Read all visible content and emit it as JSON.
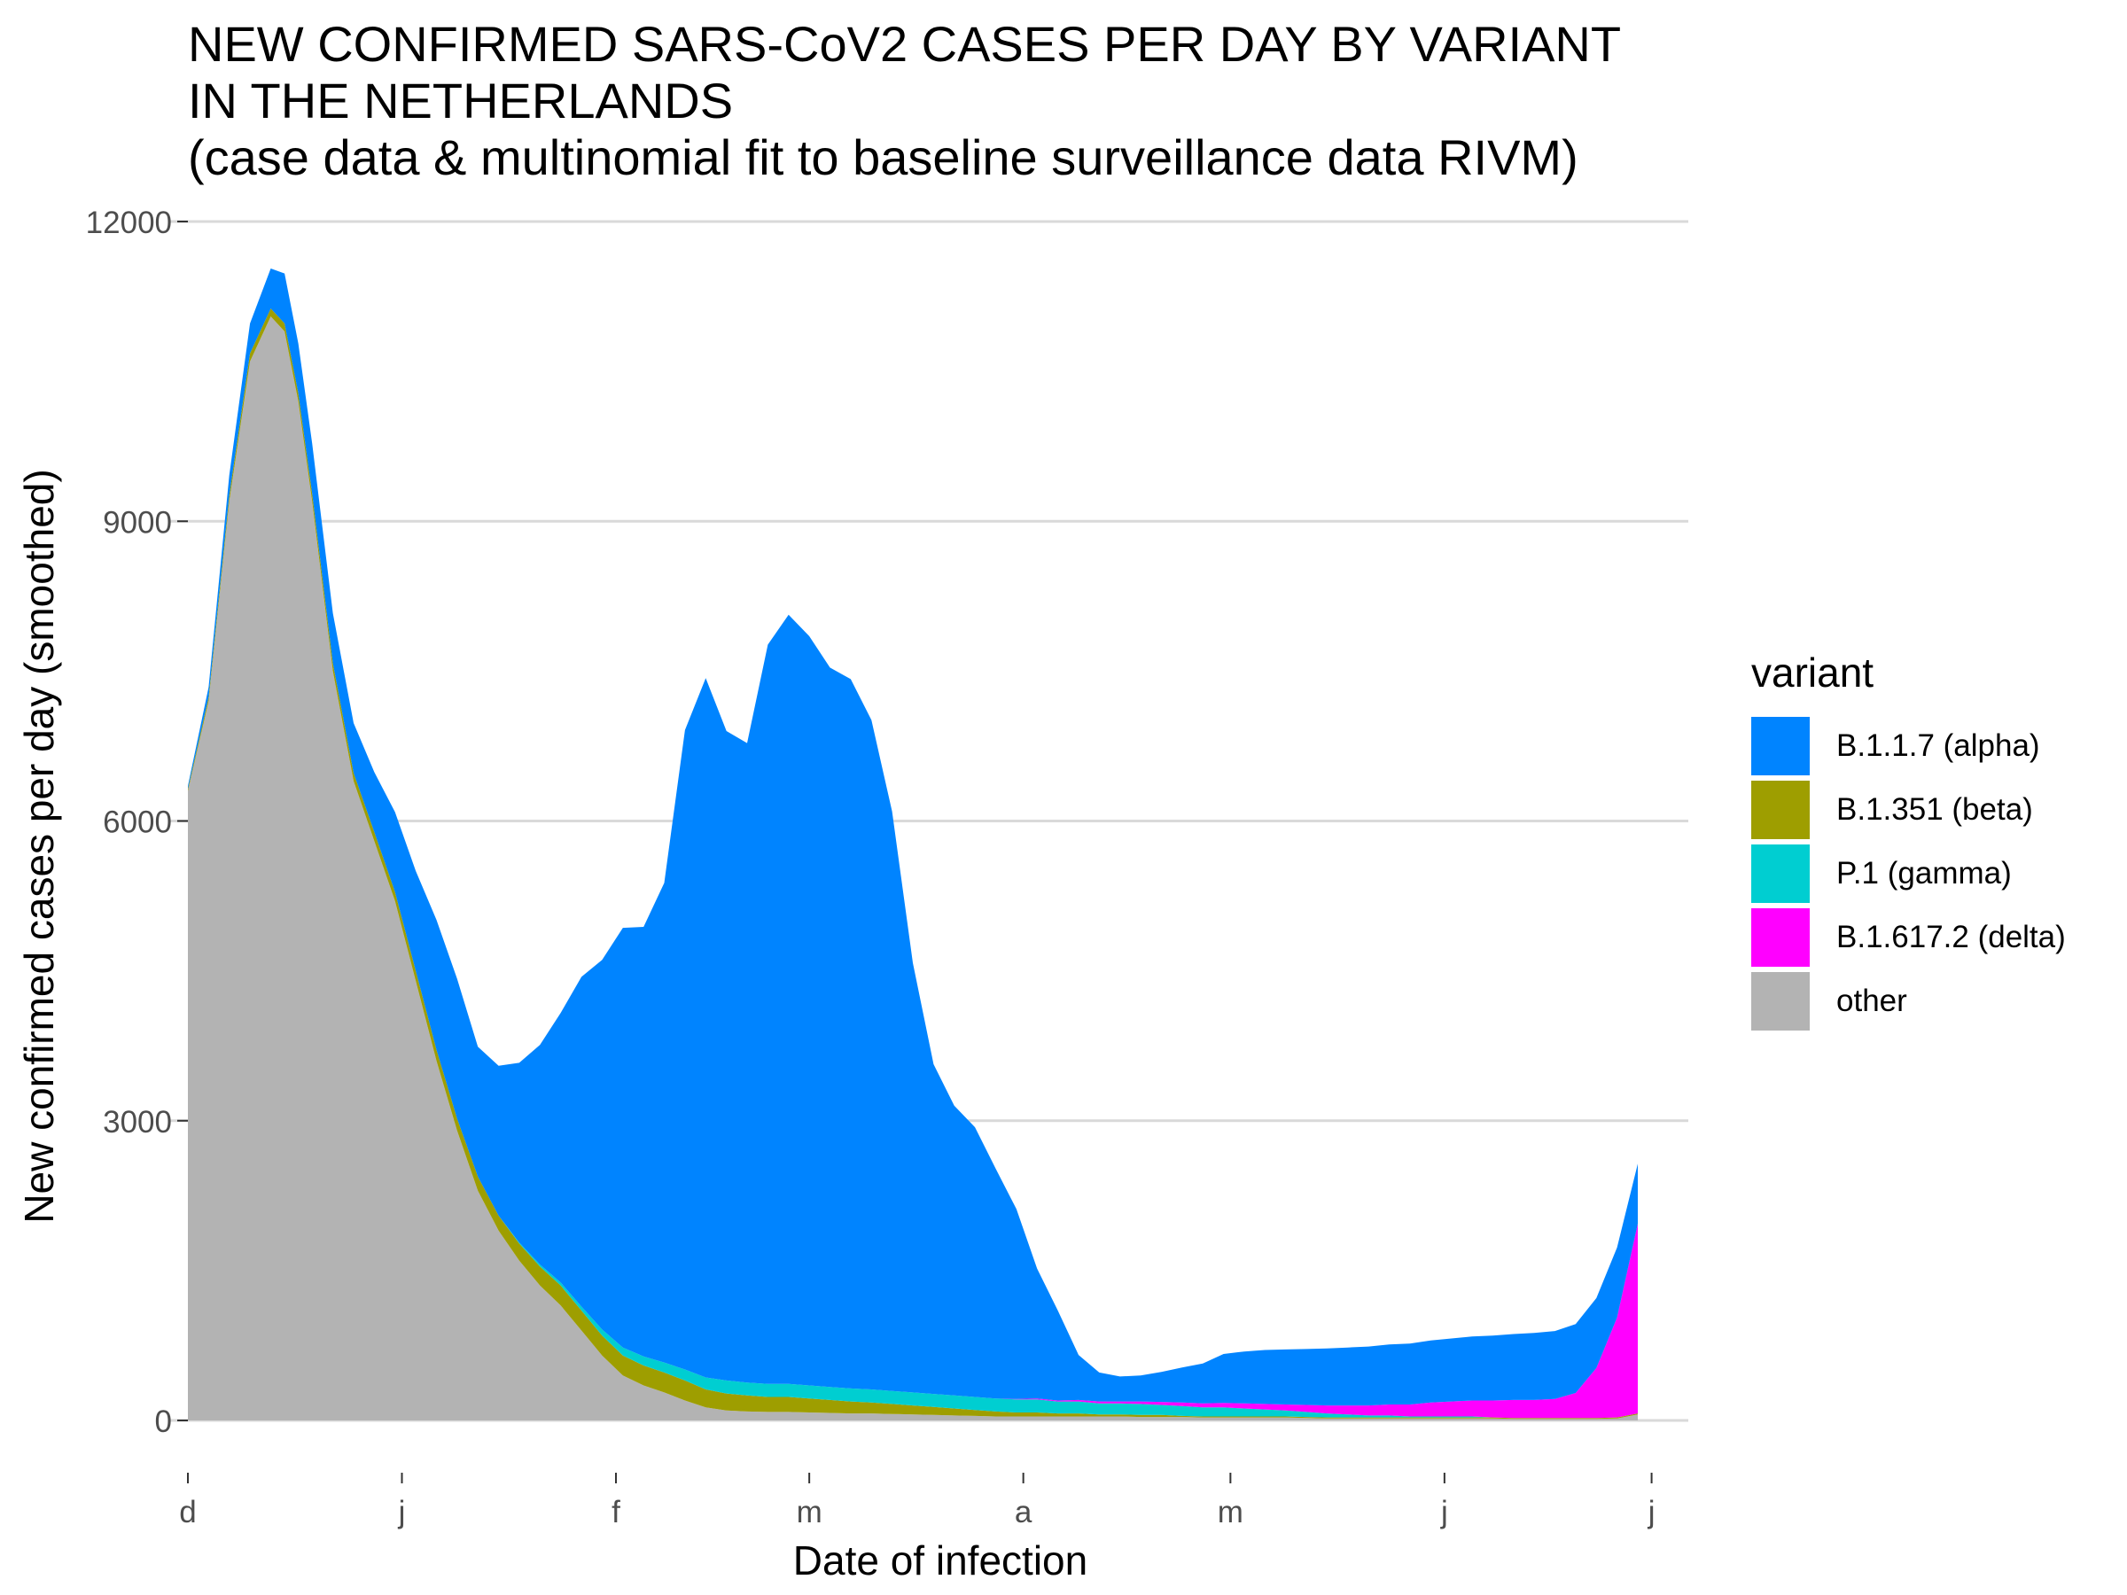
{
  "title": {
    "line1": "NEW CONFIRMED SARS-CoV2 CASES PER DAY BY VARIANT",
    "line2": "IN THE NETHERLANDS",
    "line3": "(case data & multinomial fit to baseline surveillance data RIVM)"
  },
  "legend": {
    "title": "variant",
    "items": [
      {
        "label": "B.1.1.7 (alpha)",
        "color": "#0084FF"
      },
      {
        "label": "B.1.351 (beta)",
        "color": "#9E9E00"
      },
      {
        "label": "P.1 (gamma)",
        "color": "#00CED1"
      },
      {
        "label": "B.1.617.2 (delta)",
        "color": "#FF00FF"
      },
      {
        "label": "other",
        "color": "#B3B3B3"
      }
    ]
  },
  "chart_data": {
    "type": "area",
    "stacked": true,
    "xlabel": "Date of infection",
    "ylabel": "New confirmed cases per day (smoothed)",
    "ylim": [
      0,
      12000
    ],
    "yticks": [
      0,
      3000,
      6000,
      9000,
      12000
    ],
    "xlim": [
      0,
      210
    ],
    "xticks": [
      {
        "label": "d",
        "x": 0
      },
      {
        "label": "j",
        "x": 31
      },
      {
        "label": "f",
        "x": 62
      },
      {
        "label": "m",
        "x": 90
      },
      {
        "label": "a",
        "x": 121
      },
      {
        "label": "m",
        "x": 151
      },
      {
        "label": "j",
        "x": 182
      },
      {
        "label": "j",
        "x": 212
      }
    ],
    "grid": "horizontal",
    "legend_position": "right",
    "x": [
      0,
      3,
      6,
      9,
      12,
      14,
      16,
      18,
      21,
      24,
      27,
      30,
      33,
      36,
      39,
      42,
      45,
      48,
      51,
      54,
      57,
      60,
      63,
      66,
      69,
      72,
      75,
      78,
      81,
      84,
      87,
      90,
      93,
      96,
      99,
      102,
      105,
      108,
      111,
      114,
      117,
      120,
      123,
      126,
      129,
      132,
      135,
      138,
      141,
      144,
      147,
      150,
      153,
      156,
      159,
      162,
      165,
      168,
      171,
      174,
      177,
      180,
      183,
      186,
      189,
      192,
      195,
      198,
      201,
      204,
      207,
      210
    ],
    "series": [
      {
        "name": "other",
        "values": [
          6300,
          7200,
          9200,
          10600,
          11050,
          10900,
          10200,
          9200,
          7500,
          6400,
          5800,
          5200,
          4400,
          3600,
          2900,
          2300,
          1900,
          1600,
          1350,
          1150,
          900,
          650,
          450,
          350,
          280,
          200,
          130,
          100,
          90,
          85,
          85,
          80,
          75,
          70,
          70,
          65,
          60,
          55,
          50,
          45,
          40,
          40,
          40,
          40,
          40,
          40,
          40,
          35,
          35,
          35,
          30,
          30,
          30,
          30,
          30,
          25,
          20,
          20,
          20,
          20,
          20,
          20,
          20,
          20,
          20,
          15,
          15,
          15,
          15,
          15,
          20,
          60
        ]
      },
      {
        "name": "B.1.351 (beta)",
        "values": [
          20,
          40,
          60,
          80,
          80,
          80,
          80,
          80,
          80,
          80,
          90,
          90,
          100,
          110,
          120,
          140,
          150,
          170,
          190,
          200,
          200,
          200,
          200,
          200,
          200,
          200,
          180,
          170,
          160,
          150,
          150,
          140,
          130,
          120,
          110,
          100,
          90,
          80,
          70,
          60,
          50,
          40,
          40,
          30,
          30,
          20,
          20,
          20,
          20,
          10,
          10,
          10,
          10,
          10,
          10,
          10,
          10,
          10,
          10,
          10,
          10,
          10,
          10,
          10,
          10,
          10,
          10,
          10,
          10,
          10,
          10,
          10
        ]
      },
      {
        "name": "P.1 (gamma)",
        "values": [
          0,
          0,
          0,
          0,
          0,
          0,
          0,
          0,
          0,
          0,
          0,
          0,
          0,
          0,
          0,
          0,
          0,
          10,
          20,
          30,
          40,
          60,
          80,
          90,
          100,
          110,
          120,
          130,
          130,
          130,
          130,
          130,
          130,
          130,
          130,
          130,
          130,
          130,
          130,
          130,
          130,
          130,
          130,
          120,
          120,
          110,
          110,
          110,
          100,
          100,
          90,
          90,
          80,
          70,
          60,
          50,
          40,
          30,
          20,
          20,
          10,
          10,
          10,
          10,
          0,
          0,
          0,
          0,
          0,
          0,
          0,
          0
        ]
      },
      {
        "name": "B.1.617.2 (delta)",
        "values": [
          0,
          0,
          0,
          0,
          0,
          0,
          0,
          0,
          0,
          0,
          0,
          0,
          0,
          0,
          0,
          0,
          0,
          0,
          0,
          0,
          0,
          0,
          0,
          0,
          0,
          0,
          0,
          0,
          0,
          0,
          0,
          0,
          0,
          0,
          0,
          0,
          0,
          0,
          0,
          0,
          0,
          5,
          10,
          10,
          15,
          20,
          20,
          25,
          30,
          35,
          40,
          45,
          50,
          55,
          60,
          70,
          80,
          90,
          100,
          110,
          120,
          140,
          150,
          160,
          170,
          180,
          180,
          190,
          250,
          500,
          1000,
          1900
        ]
      },
      {
        "name": "B.1.1.7 (alpha)",
        "values": [
          30,
          100,
          200,
          300,
          400,
          500,
          500,
          500,
          500,
          500,
          600,
          800,
          1000,
          1300,
          1400,
          1300,
          1500,
          1800,
          2200,
          2700,
          3300,
          3700,
          4200,
          4300,
          4800,
          6400,
          7000,
          6500,
          6400,
          7400,
          7700,
          7500,
          7200,
          7100,
          6700,
          5800,
          4300,
          3300,
          2900,
          2700,
          2300,
          1900,
          1300,
          900,
          450,
          290,
          250,
          260,
          300,
          350,
          400,
          490,
          520,
          540,
          550,
          560,
          570,
          580,
          590,
          600,
          610,
          620,
          630,
          640,
          650,
          660,
          670,
          680,
          690,
          700,
          700,
          600
        ]
      }
    ]
  }
}
